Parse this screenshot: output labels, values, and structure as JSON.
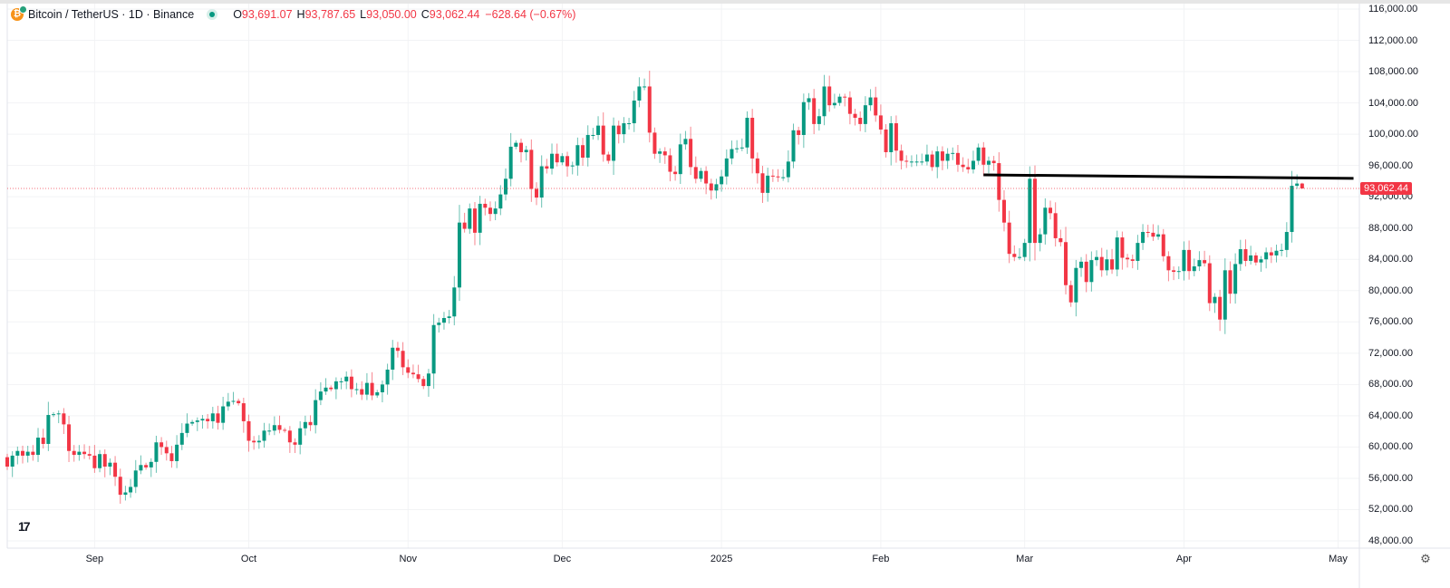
{
  "header": {
    "symbol": "Bitcoin / TetherUS · 1D · Binance",
    "open_label": "O",
    "open": "93,691.07",
    "high_label": "H",
    "high": "93,787.65",
    "low_label": "L",
    "low": "93,050.00",
    "close_label": "C",
    "close": "93,062.44",
    "change": "−628.64 (−0.67%)",
    "icon": "bitcoin-icon",
    "market_status": "open"
  },
  "colors": {
    "up": "#089981",
    "down": "#f23645",
    "grid": "#f2f3f5",
    "trendline": "#000000",
    "price_line": "#f23645"
  },
  "chart_data": {
    "type": "candlestick",
    "first_date": "2024-08-15",
    "interval": "1D",
    "first_open": 58700,
    "last_candle": {
      "open": 93691.07,
      "high": 93787.65,
      "low": 93050.0,
      "close": 93062.44
    },
    "close": [
      57500,
      58900,
      59500,
      58900,
      59400,
      59000,
      61200,
      60400,
      64100,
      64200,
      64300,
      62900,
      59500,
      59000,
      59400,
      59100,
      58900,
      57300,
      59100,
      57500,
      58000,
      56200,
      53900,
      54200,
      54900,
      57000,
      57700,
      57400,
      58100,
      60600,
      60000,
      59200,
      58200,
      60300,
      61800,
      63000,
      63200,
      63400,
      63600,
      63300,
      64300,
      63100,
      65200,
      65800,
      65900,
      65600,
      63300,
      60800,
      60600,
      60800,
      62100,
      62100,
      62800,
      62200,
      62100,
      60600,
      60300,
      62400,
      63200,
      62800,
      66000,
      67100,
      67600,
      67400,
      68400,
      68400,
      69000,
      67400,
      67400,
      66700,
      68200,
      66600,
      67000,
      68000,
      69900,
      72700,
      72300,
      70200,
      69500,
      69300,
      68700,
      67800,
      69400,
      75600,
      75900,
      76500,
      76700,
      80400,
      88700,
      87900,
      90500,
      87400,
      91100,
      90600,
      89800,
      90500,
      92300,
      94300,
      98400,
      98900,
      97700,
      98000,
      93000,
      91900,
      95900,
      95600,
      97500,
      96400,
      97200,
      95900,
      96000,
      98600,
      97000,
      99900,
      99900,
      101100,
      97400,
      96600,
      101100,
      100000,
      101400,
      101400,
      104300,
      106100,
      106100,
      100200,
      97500,
      97800,
      97300,
      95200,
      94900,
      98700,
      99400,
      95800,
      94300,
      95300,
      93700,
      92800,
      93600,
      94600,
      96900,
      98100,
      98200,
      98300,
      102100,
      96900,
      95000,
      92500,
      94700,
      94600,
      94500,
      94500,
      96500,
      100500,
      99900,
      104100,
      104600,
      101300,
      102300,
      106100,
      103700,
      104000,
      104800,
      104700,
      102600,
      102100,
      101300,
      103700,
      104700,
      102400,
      100600,
      97700,
      101400,
      97900,
      96600,
      96500,
      96500,
      96500,
      96500,
      97400,
      95800,
      97800,
      96600,
      97500,
      97600,
      96100,
      95800,
      95500,
      96600,
      98300,
      96100,
      96600,
      96300,
      91600,
      88700,
      84700,
      84300,
      84300,
      86100,
      94300,
      86100,
      87200,
      90600,
      89900,
      86700,
      86200,
      80700,
      78500,
      82900,
      83700,
      81100,
      83900,
      84300,
      82600,
      84000,
      82700,
      86800,
      84200,
      84000,
      83800,
      86100,
      87500,
      87400,
      86900,
      87200,
      84400,
      82600,
      82400,
      82500,
      85200,
      82500,
      83100,
      83900,
      83500,
      78400,
      79200,
      76300,
      82600,
      79600,
      83400,
      85300,
      83800,
      84500,
      83600,
      84000,
      84900,
      84500,
      85100,
      85200,
      87500,
      93400,
      93691,
      93062.44
    ],
    "y_axis": {
      "min": 46000,
      "max": 116000,
      "ticks": [
        116000,
        112000,
        108000,
        104000,
        100000,
        96000,
        92000,
        88000,
        84000,
        80000,
        76000,
        72000,
        68000,
        64000,
        60000,
        56000,
        52000,
        48000
      ],
      "tick_labels": [
        "116,000.00",
        "112,000.00",
        "108,000.00",
        "104,000.00",
        "100,000.00",
        "96,000.00",
        "92,000.00",
        "88,000.00",
        "84,000.00",
        "80,000.00",
        "76,000.00",
        "72,000.00",
        "68,000.00",
        "64,000.00",
        "60,000.00",
        "56,000.00",
        "52,000.00",
        "48,000.00"
      ]
    },
    "x_ticks": [
      {
        "label": "Sep",
        "date": "2024-09-01"
      },
      {
        "label": "Oct",
        "date": "2024-10-01"
      },
      {
        "label": "Nov",
        "date": "2024-11-01"
      },
      {
        "label": "Dec",
        "date": "2024-12-01"
      },
      {
        "label": "2025",
        "date": "2025-01-01"
      },
      {
        "label": "Feb",
        "date": "2025-02-01"
      },
      {
        "label": "Mar",
        "date": "2025-03-01"
      },
      {
        "label": "Apr",
        "date": "2025-04-01"
      },
      {
        "label": "May",
        "date": "2025-05-01"
      }
    ],
    "last_price_label": "93,062.44",
    "trendline": {
      "start": {
        "date": "2025-02-21",
        "price": 94800
      },
      "end": {
        "date": "2025-05-04",
        "price": 94350
      }
    },
    "grid": true
  }
}
